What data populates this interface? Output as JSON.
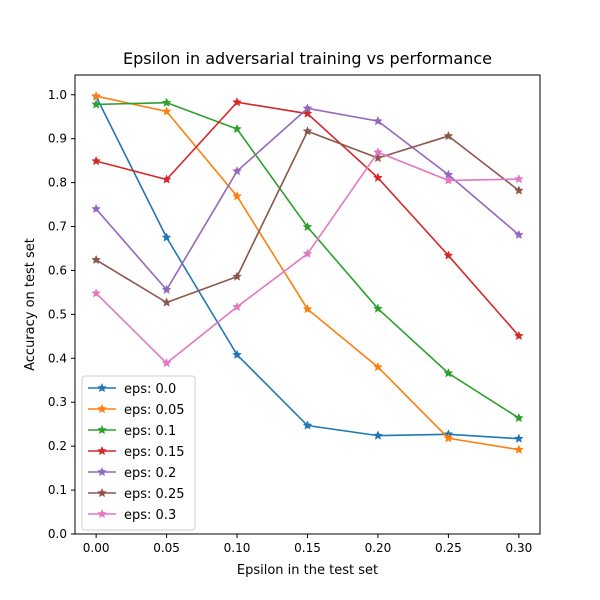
{
  "chart_data": {
    "type": "line",
    "title": "Epsilon in adversarial training vs performance",
    "xlabel": "Epsilon in the test set",
    "ylabel": "Accuracy on test set",
    "x": [
      0.0,
      0.05,
      0.1,
      0.15,
      0.2,
      0.25,
      0.3
    ],
    "x_tick_labels": [
      "0.00",
      "0.05",
      "0.10",
      "0.15",
      "0.20",
      "0.25",
      "0.30"
    ],
    "y_ticks": [
      0.0,
      0.1,
      0.2,
      0.3,
      0.4,
      0.5,
      0.6,
      0.7,
      0.8,
      0.9,
      1.0
    ],
    "y_tick_labels": [
      "0.0",
      "0.1",
      "0.2",
      "0.3",
      "0.4",
      "0.5",
      "0.6",
      "0.7",
      "0.8",
      "0.9",
      "1.0"
    ],
    "xlim": [
      -0.015,
      0.315
    ],
    "ylim": [
      0.0,
      1.045
    ],
    "grid": false,
    "legend_position": "lower-left",
    "marker": "star",
    "series": [
      {
        "name": "eps: 0.0",
        "color": "#1f77b4",
        "values": [
          0.996,
          0.675,
          0.408,
          0.247,
          0.224,
          0.227,
          0.217
        ]
      },
      {
        "name": "eps: 0.05",
        "color": "#ff7f0e",
        "values": [
          0.997,
          0.962,
          0.769,
          0.512,
          0.38,
          0.218,
          0.192
        ]
      },
      {
        "name": "eps: 0.1",
        "color": "#2ca02c",
        "values": [
          0.978,
          0.982,
          0.922,
          0.699,
          0.513,
          0.366,
          0.264
        ]
      },
      {
        "name": "eps: 0.15",
        "color": "#d62728",
        "values": [
          0.849,
          0.807,
          0.983,
          0.957,
          0.811,
          0.634,
          0.451
        ]
      },
      {
        "name": "eps: 0.2",
        "color": "#9467bd",
        "values": [
          0.74,
          0.556,
          0.826,
          0.969,
          0.94,
          0.818,
          0.681
        ]
      },
      {
        "name": "eps: 0.25",
        "color": "#8c564b",
        "values": [
          0.624,
          0.527,
          0.586,
          0.917,
          0.856,
          0.906,
          0.782
        ]
      },
      {
        "name": "eps: 0.3",
        "color": "#e377c2",
        "values": [
          0.548,
          0.389,
          0.517,
          0.638,
          0.869,
          0.805,
          0.808
        ]
      }
    ]
  }
}
